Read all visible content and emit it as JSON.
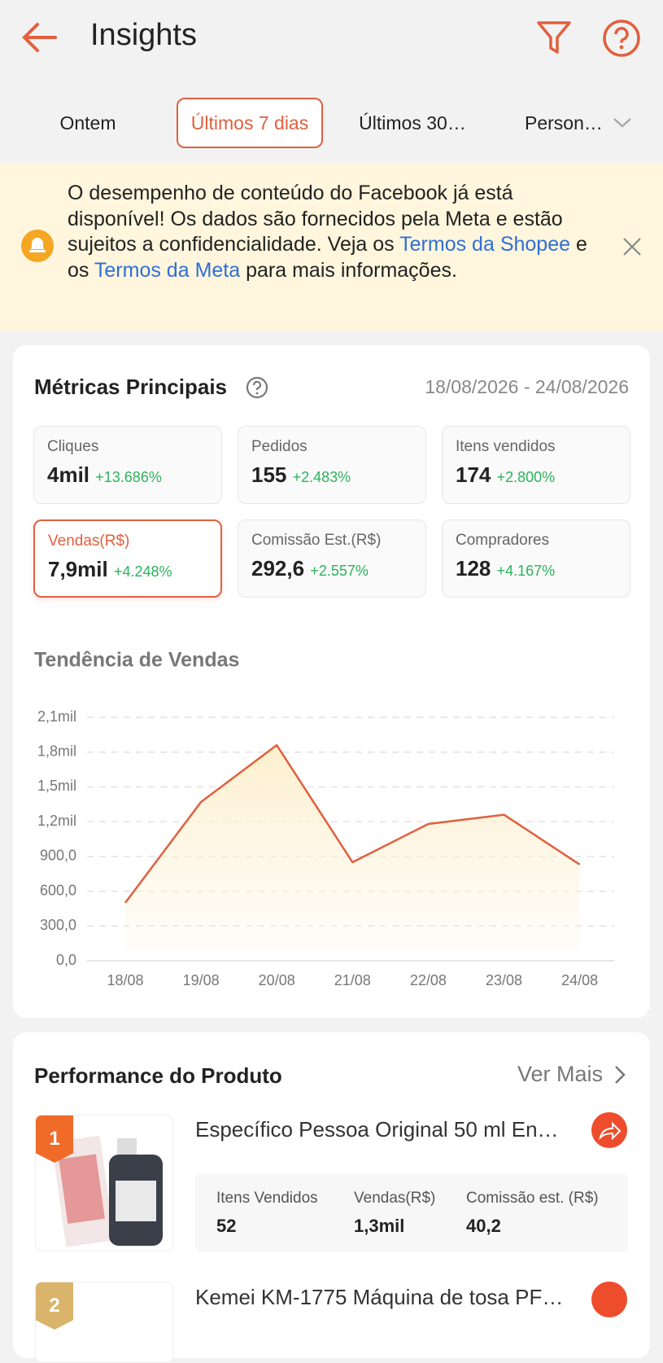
{
  "header": {
    "title": "Insights"
  },
  "filters": [
    "Ontem",
    "Últimos 7 dias",
    "Últimos 30…",
    "Person…"
  ],
  "banner": {
    "text1": "O desempenho de conteúdo do Facebook já está disponível! Os dados são fornecidos pela Meta e estão sujeitos a confidencialidade. Veja os ",
    "link1": "Termos da Shopee",
    "text2": " e os ",
    "link2": "Termos da Meta",
    "text3": " para mais informações."
  },
  "metrics": {
    "title": "Métricas Principais",
    "date_range": "18/08/2026 - 24/08/2026",
    "items": [
      {
        "label": "Cliques",
        "value": "4mil",
        "change": "+13.686%"
      },
      {
        "label": "Pedidos",
        "value": "155",
        "change": "+2.483%"
      },
      {
        "label": "Itens vendidos",
        "value": "174",
        "change": "+2.800%"
      },
      {
        "label": "Vendas(R$)",
        "value": "7,9mil",
        "change": "+4.248%"
      },
      {
        "label": "Comissão Est.(R$)",
        "value": "292,6",
        "change": "+2.557%"
      },
      {
        "label": "Compradores",
        "value": "128",
        "change": "+4.167%"
      }
    ]
  },
  "chart_data": {
    "type": "line",
    "title": "Tendência de Vendas",
    "categories": [
      "18/08",
      "19/08",
      "20/08",
      "21/08",
      "22/08",
      "23/08",
      "24/08"
    ],
    "values": [
      500,
      1370,
      1860,
      850,
      1180,
      1260,
      830
    ],
    "color": "#e0603f",
    "ylim": [
      0,
      2100
    ],
    "yticks": [
      {
        "value": 0,
        "label": "0,0"
      },
      {
        "value": 300,
        "label": "300,0"
      },
      {
        "value": 600,
        "label": "600,0"
      },
      {
        "value": 900,
        "label": "900,0"
      },
      {
        "value": 1200,
        "label": "1,2mil"
      },
      {
        "value": 1500,
        "label": "1,5mil"
      },
      {
        "value": 1800,
        "label": "1,8mil"
      },
      {
        "value": 2100,
        "label": "2,1mil"
      }
    ],
    "grid": true
  },
  "products": {
    "title": "Performance do Produto",
    "more": "Ver Mais",
    "items": [
      {
        "rank": "1",
        "name": "Específico Pessoa Original 50 ml En…",
        "stats": [
          {
            "label": "Itens Vendidos",
            "value": "52"
          },
          {
            "label": "Vendas(R$)",
            "value": "1,3mil"
          },
          {
            "label": "Comissão est. (R$)",
            "value": "40,2"
          }
        ]
      },
      {
        "rank": "2",
        "name": "Kemei KM-1775 Máquina de tosa PF…"
      }
    ]
  }
}
